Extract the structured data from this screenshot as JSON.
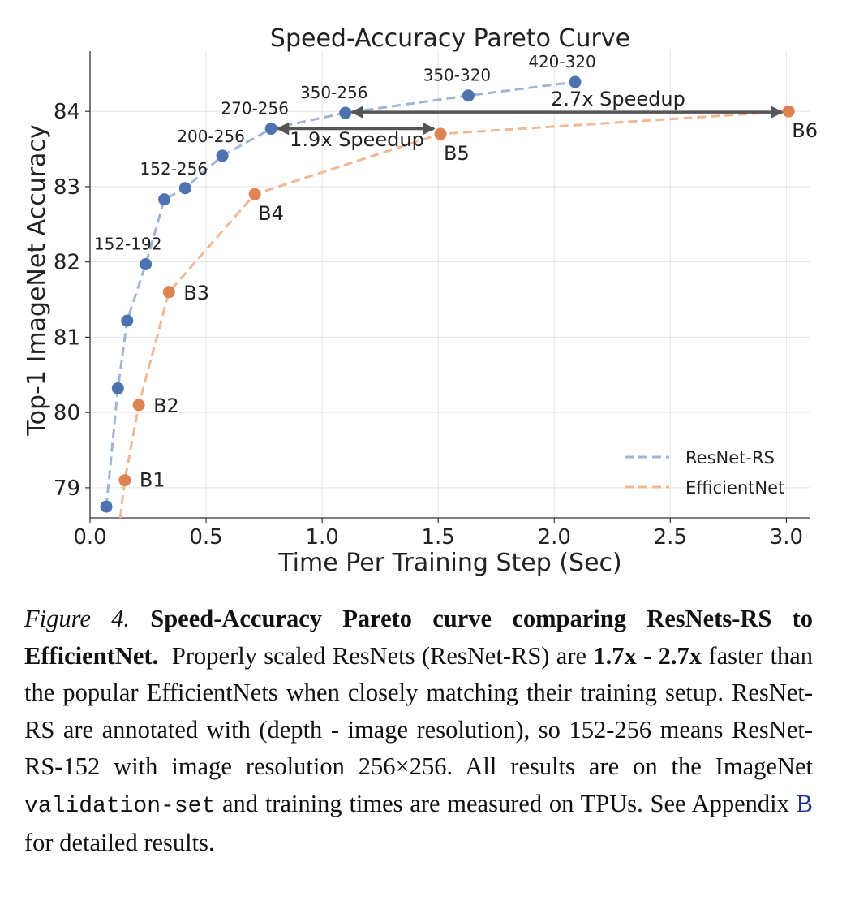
{
  "chart_data": {
    "type": "line",
    "title": "Speed-Accuracy Pareto Curve",
    "xlabel": "Time Per Training Step (Sec)",
    "ylabel": "Top-1 ImageNet Accuracy",
    "xlim": [
      0.0,
      3.1
    ],
    "ylim": [
      78.6,
      84.8
    ],
    "xticks": [
      0.0,
      0.5,
      1.0,
      1.5,
      2.0,
      2.5,
      3.0
    ],
    "xtick_labels": [
      "0.0",
      "0.5",
      "1.0",
      "1.5",
      "2.0",
      "2.5",
      "3.0"
    ],
    "yticks": [
      79,
      80,
      81,
      82,
      83,
      84
    ],
    "ytick_labels": [
      "79",
      "80",
      "81",
      "82",
      "83",
      "84"
    ],
    "grid": true,
    "legend_position": "lower-right",
    "series": [
      {
        "name": "ResNet-RS",
        "color": "#4c72b0",
        "line_color": "#9fb4d6",
        "points": [
          {
            "x": 0.07,
            "y": 78.75,
            "label": ""
          },
          {
            "x": 0.12,
            "y": 80.32,
            "label": ""
          },
          {
            "x": 0.16,
            "y": 81.22,
            "label": ""
          },
          {
            "x": 0.24,
            "y": 81.97,
            "label": "152-192"
          },
          {
            "x": 0.32,
            "y": 82.83,
            "label": ""
          },
          {
            "x": 0.41,
            "y": 82.98,
            "label": "152-256"
          },
          {
            "x": 0.57,
            "y": 83.41,
            "label": "200-256"
          },
          {
            "x": 0.78,
            "y": 83.77,
            "label": "270-256"
          },
          {
            "x": 1.1,
            "y": 83.98,
            "label": "350-256"
          },
          {
            "x": 1.63,
            "y": 84.21,
            "label": "350-320"
          },
          {
            "x": 2.09,
            "y": 84.39,
            "label": "420-320"
          }
        ]
      },
      {
        "name": "EfficientNet",
        "color": "#dd8452",
        "line_color": "#f0b896",
        "line_start": {
          "x": 0.13,
          "y": 78.6
        },
        "points": [
          {
            "x": 0.15,
            "y": 79.1,
            "label": "B1"
          },
          {
            "x": 0.21,
            "y": 80.1,
            "label": "B2"
          },
          {
            "x": 0.34,
            "y": 81.6,
            "label": "B3"
          },
          {
            "x": 0.71,
            "y": 82.9,
            "label": "B4"
          },
          {
            "x": 1.51,
            "y": 83.7,
            "label": "B5"
          },
          {
            "x": 3.01,
            "y": 84.0,
            "label": "B6"
          }
        ]
      }
    ],
    "annotations": [
      {
        "text": "1.9x Speedup",
        "x_from": 1.51,
        "x_to": 0.78,
        "y": 83.77
      },
      {
        "text": "2.7x Speedup",
        "x_from": 3.01,
        "x_to": 1.1,
        "y": 83.99
      }
    ]
  },
  "caption": {
    "figure_label": "Figure 4.",
    "bold_title": "Speed-Accuracy Pareto curve comparing ResNets-RS to EfficientNet.",
    "text_1": "Properly scaled ResNets (ResNet-RS) are",
    "bold_speed": "1.7x - 2.7x",
    "text_2": "faster than the popular EfficientNets when closely matching their training setup.  ResNet-RS are annotated with (depth - image resolution), so 152-256 means ResNet-RS-152 with image resolution 256×256. All results are on the ImageNet",
    "mono_text": "validation-set",
    "text_3": "and training times are measured on TPUs. See Appendix",
    "link_text": "B",
    "text_4": "for detailed results."
  }
}
